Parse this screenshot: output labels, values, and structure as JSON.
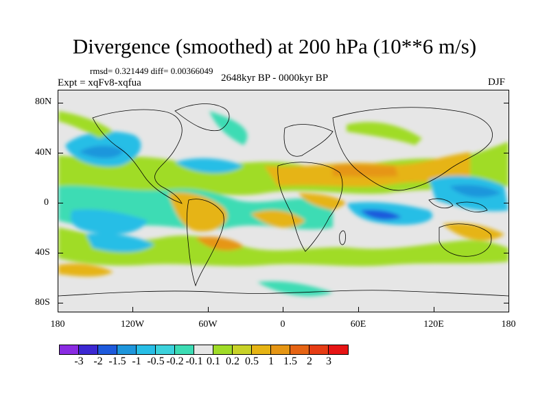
{
  "title": "Divergence (smoothed) at 200 hPa (10**6 m/s)",
  "stats": "rmsd= 0.321449  diff= 0.00366049",
  "expt": "Expt = xqFv8-xqfua",
  "period": "2648kyr BP - 0000kyr BP",
  "season": "DJF",
  "y_axis": [
    "80N",
    "40N",
    "0",
    "40S",
    "80S"
  ],
  "x_axis": [
    "180",
    "120W",
    "60W",
    "0",
    "60E",
    "120E",
    "180"
  ],
  "colors": {
    "land_background": "#e6e6e6",
    "coastline": "#000000"
  },
  "colorbar": {
    "colors": [
      "#8a2be2",
      "#3c28d2",
      "#1e5adc",
      "#1e96dc",
      "#28bee6",
      "#3cd2dc",
      "#3cdcb4",
      "#e6e6e6",
      "#a0dc28",
      "#c8d228",
      "#e6b414",
      "#e69614",
      "#e66414",
      "#e63c14",
      "#e61414"
    ],
    "labels": [
      "-3",
      "-2",
      "-1.5",
      "-1",
      "-0.5",
      "-0.2",
      "-0.1",
      "0.1",
      "0.2",
      "0.5",
      "1",
      "1.5",
      "2",
      "3"
    ]
  }
}
